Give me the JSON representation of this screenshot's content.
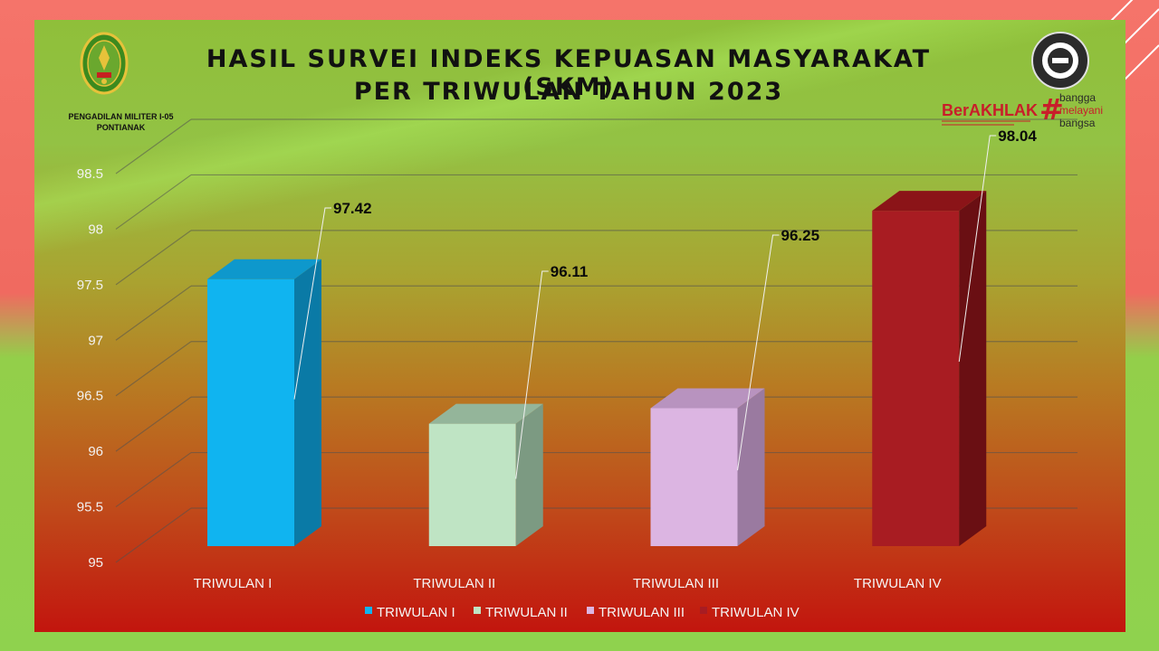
{
  "slide": {
    "title_line1": "HASIL SURVEI INDEKS KEPUASAN MASYARAKAT (SKM)",
    "title_line2": "PER TRIWULAN TAHUN 2023",
    "org_line1": "PENGADILAN MILITER I-05",
    "org_line2": "PONTIANAK",
    "logo_left_icon": "court-emblem-icon",
    "logo_right_icon": "wbk-zona-integritas-seal-icon",
    "berakhlak": {
      "word": "BerAKHLAK",
      "tagline1": "bangga",
      "tagline2": "melayani",
      "tagline3": "bangsa"
    },
    "colors": {
      "outer_bg": "#f26b63",
      "accent_red": "#c81e2a"
    }
  },
  "chart_data": {
    "type": "bar",
    "style": "3d-column",
    "categories": [
      "TRIWULAN I",
      "TRIWULAN II",
      "TRIWULAN III",
      "TRIWULAN IV"
    ],
    "values": [
      97.42,
      96.11,
      96.25,
      98.04
    ],
    "value_labels": [
      "97.42",
      "96.11",
      "96.25",
      "98.04"
    ],
    "ylim": [
      95,
      98.5
    ],
    "yticks": [
      "95",
      "95.5",
      "96",
      "96.5",
      "97",
      "97.5",
      "98",
      "98.5"
    ],
    "ytick_values": [
      95,
      95.5,
      96,
      96.5,
      97,
      97.5,
      98,
      98.5
    ],
    "grid": true,
    "legend_position": "bottom",
    "legend": [
      "TRIWULAN I",
      "TRIWULAN II",
      "TRIWULAN III",
      "TRIWULAN IV"
    ],
    "colors": [
      {
        "front": "#10b4f0",
        "side": "#0a7aa6",
        "top": "#0e98cc"
      },
      {
        "front": "#bfe4c4",
        "side": "#7c9a82",
        "top": "#94b59a"
      },
      {
        "front": "#dcb5e2",
        "side": "#9a7aa0",
        "top": "#b893bf"
      },
      {
        "front": "#a81c22",
        "side": "#6a0f13",
        "top": "#8b1418"
      }
    ],
    "xlabel": "",
    "ylabel": ""
  }
}
